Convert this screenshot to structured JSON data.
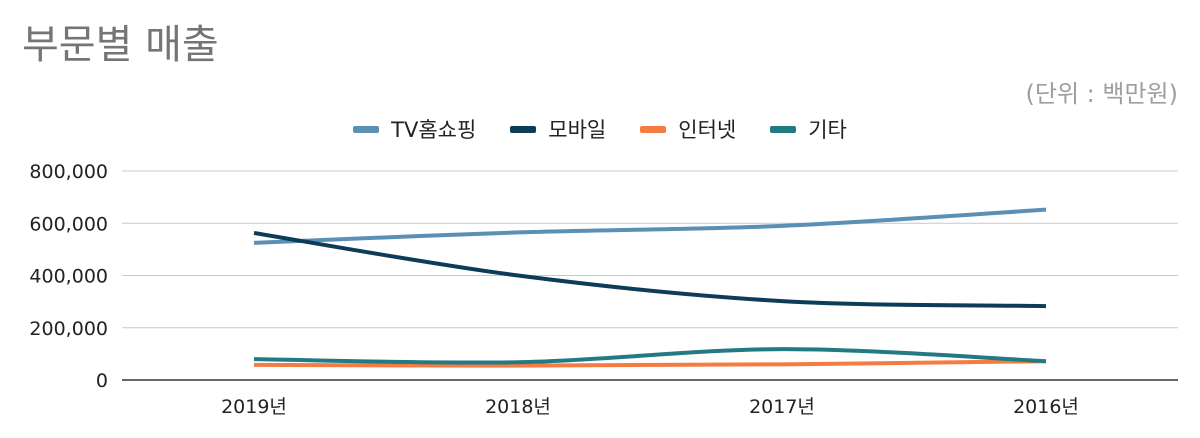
{
  "chart_data": {
    "type": "line",
    "title": "부문별 매출",
    "unit_note": "(단위 : 백만원)",
    "categories": [
      "2019년",
      "2018년",
      "2017년",
      "2016년"
    ],
    "series": [
      {
        "name": "TV홈쇼핑",
        "color": "#5b8fb4",
        "values": [
          525000,
          565000,
          590000,
          652000
        ]
      },
      {
        "name": "모바일",
        "color": "#0c3c57",
        "values": [
          563000,
          400000,
          302000,
          283000
        ]
      },
      {
        "name": "인터넷",
        "color": "#f47c42",
        "values": [
          58000,
          55000,
          60000,
          72000
        ]
      },
      {
        "name": "기타",
        "color": "#227a85",
        "values": [
          80000,
          68000,
          118000,
          72000
        ]
      }
    ],
    "ylim": [
      0,
      800000
    ],
    "yticks": [
      0,
      200000,
      400000,
      600000,
      800000
    ],
    "ytick_labels": [
      "0",
      "200,000",
      "400,000",
      "600,000",
      "800,000"
    ],
    "grid": true,
    "legend": "top-center"
  }
}
